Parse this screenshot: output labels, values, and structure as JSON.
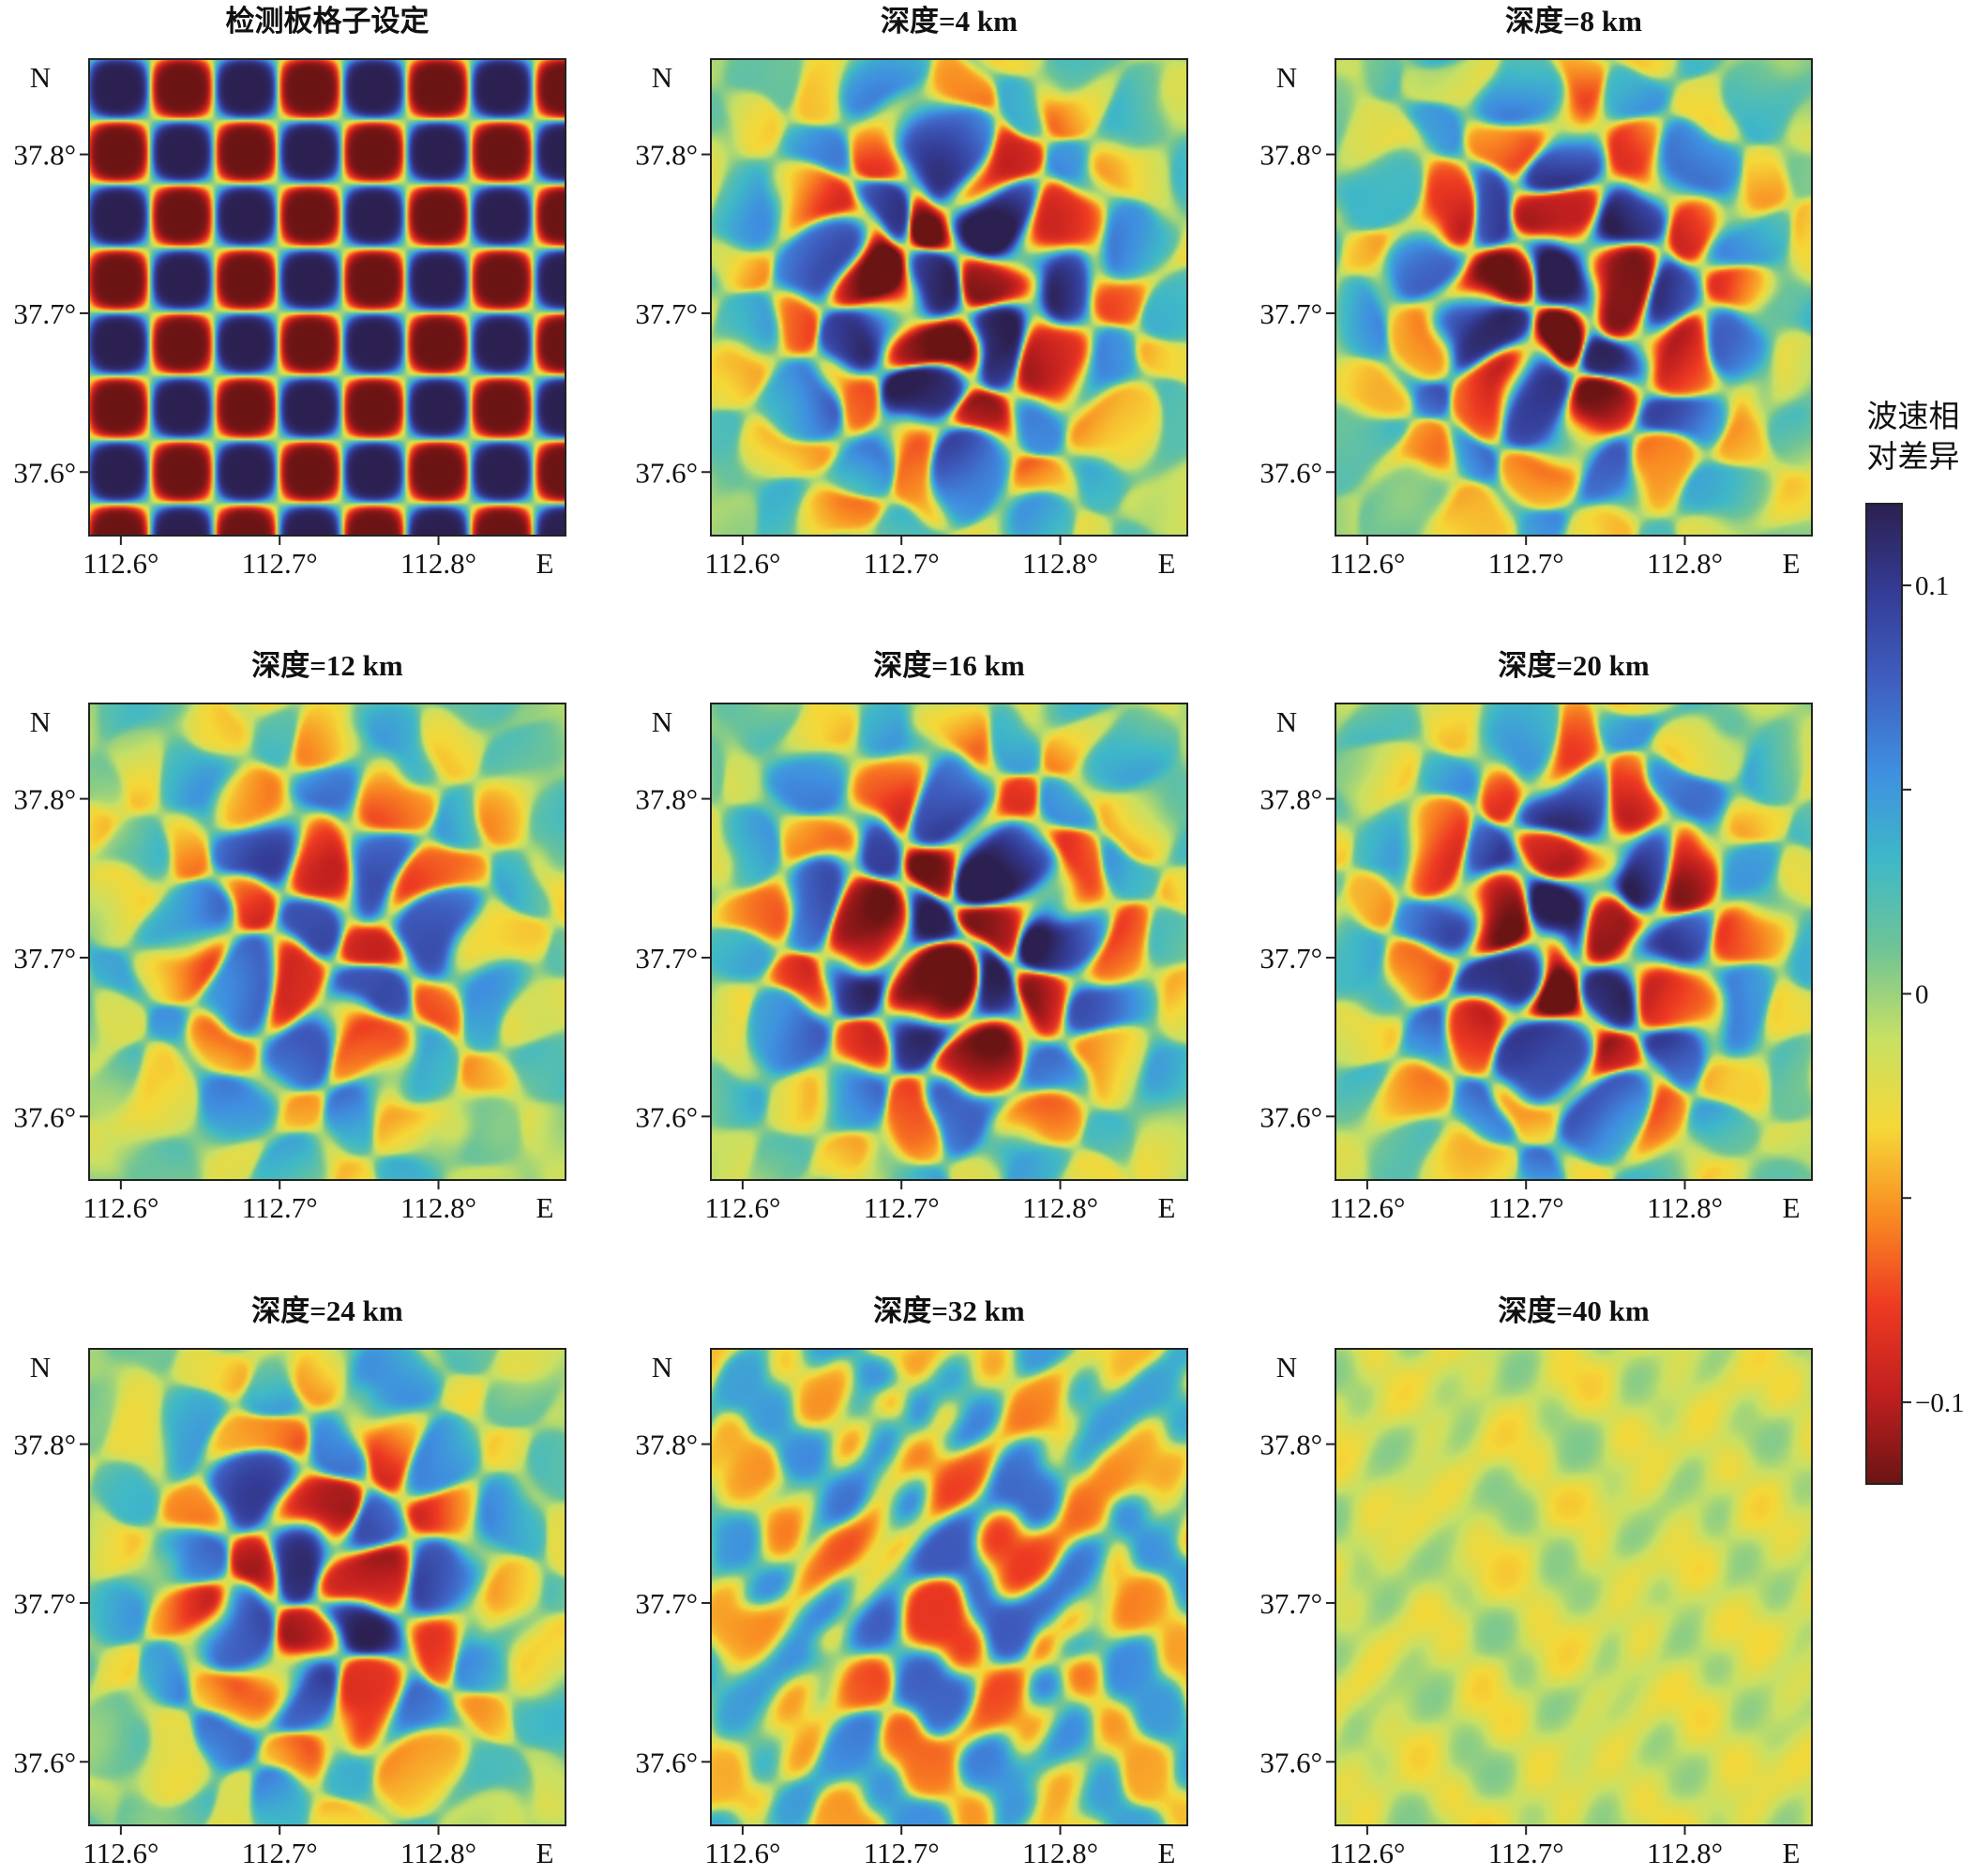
{
  "figure": {
    "type": "heatmap-grid",
    "panel_titles": [
      "检测板格子设定",
      "深度=4 km",
      "深度=8 km",
      "深度=12 km",
      "深度=16 km",
      "深度=20 km",
      "深度=24 km",
      "深度=32 km",
      "深度=40 km"
    ],
    "colorbar": {
      "title_line1": "波速相",
      "title_line2": "对差异",
      "ticks": [
        {
          "value": 0.1,
          "label": "0.1"
        },
        {
          "value": 0.05,
          "label": ""
        },
        {
          "value": 0,
          "label": "0"
        },
        {
          "value": -0.05,
          "label": ""
        },
        {
          "value": -0.1,
          "label": "−0.1"
        }
      ],
      "range": [
        -0.12,
        0.12
      ],
      "colors": [
        "#6b1414",
        "#c01f1f",
        "#ee3a22",
        "#f98a22",
        "#f5d838",
        "#c8e064",
        "#6fc496",
        "#3fb8c8",
        "#3f8fe0",
        "#3f5fc0",
        "#343c96",
        "#2c2050"
      ]
    }
  },
  "chart_data": [
    {
      "type": "heatmap",
      "title": "检测板格子设定",
      "x_ticks": [
        {
          "value": 112.6,
          "label": "112.6°"
        },
        {
          "value": 112.7,
          "label": "112.7°"
        },
        {
          "value": 112.8,
          "label": "112.8°"
        }
      ],
      "y_ticks": [
        {
          "value": 37.8,
          "label": "37.8°"
        },
        {
          "value": 37.7,
          "label": "37.7°"
        },
        {
          "value": 37.6,
          "label": "37.6°"
        }
      ],
      "x_end_label": "E",
      "y_end_label": "N",
      "xlim": [
        112.58,
        112.88
      ],
      "ylim": [
        37.56,
        37.86
      ],
      "value_range": [
        -0.12,
        0.12
      ],
      "pattern": "checkerboard",
      "amplitude": 0.12
    },
    {
      "type": "heatmap",
      "title": "深度=4 km",
      "x_ticks": [
        {
          "value": 112.6,
          "label": "112.6°"
        },
        {
          "value": 112.7,
          "label": "112.7°"
        },
        {
          "value": 112.8,
          "label": "112.8°"
        }
      ],
      "y_ticks": [
        {
          "value": 37.8,
          "label": "37.8°"
        },
        {
          "value": 37.7,
          "label": "37.7°"
        },
        {
          "value": 37.6,
          "label": "37.6°"
        }
      ],
      "x_end_label": "E",
      "y_end_label": "N",
      "xlim": [
        112.58,
        112.88
      ],
      "ylim": [
        37.56,
        37.86
      ],
      "value_range": [
        -0.12,
        0.12
      ],
      "pattern": "recovered",
      "amplitude": 0.12
    },
    {
      "type": "heatmap",
      "title": "深度=8 km",
      "x_ticks": [
        {
          "value": 112.6,
          "label": "112.6°"
        },
        {
          "value": 112.7,
          "label": "112.7°"
        },
        {
          "value": 112.8,
          "label": "112.8°"
        }
      ],
      "y_ticks": [
        {
          "value": 37.8,
          "label": "37.8°"
        },
        {
          "value": 37.7,
          "label": "37.7°"
        },
        {
          "value": 37.6,
          "label": "37.6°"
        }
      ],
      "x_end_label": "E",
      "y_end_label": "N",
      "xlim": [
        112.58,
        112.88
      ],
      "ylim": [
        37.56,
        37.86
      ],
      "value_range": [
        -0.12,
        0.12
      ],
      "pattern": "recovered",
      "amplitude": 0.12
    },
    {
      "type": "heatmap",
      "title": "深度=12 km",
      "x_ticks": [
        {
          "value": 112.6,
          "label": "112.6°"
        },
        {
          "value": 112.7,
          "label": "112.7°"
        },
        {
          "value": 112.8,
          "label": "112.8°"
        }
      ],
      "y_ticks": [
        {
          "value": 37.8,
          "label": "37.8°"
        },
        {
          "value": 37.7,
          "label": "37.7°"
        },
        {
          "value": 37.6,
          "label": "37.6°"
        }
      ],
      "x_end_label": "E",
      "y_end_label": "N",
      "xlim": [
        112.58,
        112.88
      ],
      "ylim": [
        37.56,
        37.86
      ],
      "value_range": [
        -0.12,
        0.12
      ],
      "pattern": "recovered",
      "amplitude": 0.09
    },
    {
      "type": "heatmap",
      "title": "深度=16 km",
      "x_ticks": [
        {
          "value": 112.6,
          "label": "112.6°"
        },
        {
          "value": 112.7,
          "label": "112.7°"
        },
        {
          "value": 112.8,
          "label": "112.8°"
        }
      ],
      "y_ticks": [
        {
          "value": 37.8,
          "label": "37.8°"
        },
        {
          "value": 37.7,
          "label": "37.7°"
        },
        {
          "value": 37.6,
          "label": "37.6°"
        }
      ],
      "x_end_label": "E",
      "y_end_label": "N",
      "xlim": [
        112.58,
        112.88
      ],
      "ylim": [
        37.56,
        37.86
      ],
      "value_range": [
        -0.12,
        0.12
      ],
      "pattern": "recovered",
      "amplitude": 0.12
    },
    {
      "type": "heatmap",
      "title": "深度=20 km",
      "x_ticks": [
        {
          "value": 112.6,
          "label": "112.6°"
        },
        {
          "value": 112.7,
          "label": "112.7°"
        },
        {
          "value": 112.8,
          "label": "112.8°"
        }
      ],
      "y_ticks": [
        {
          "value": 37.8,
          "label": "37.8°"
        },
        {
          "value": 37.7,
          "label": "37.7°"
        },
        {
          "value": 37.6,
          "label": "37.6°"
        }
      ],
      "x_end_label": "E",
      "y_end_label": "N",
      "xlim": [
        112.58,
        112.88
      ],
      "ylim": [
        37.56,
        37.86
      ],
      "value_range": [
        -0.12,
        0.12
      ],
      "pattern": "recovered",
      "amplitude": 0.12
    },
    {
      "type": "heatmap",
      "title": "深度=24 km",
      "x_ticks": [
        {
          "value": 112.6,
          "label": "112.6°"
        },
        {
          "value": 112.7,
          "label": "112.7°"
        },
        {
          "value": 112.8,
          "label": "112.8°"
        }
      ],
      "y_ticks": [
        {
          "value": 37.8,
          "label": "37.8°"
        },
        {
          "value": 37.7,
          "label": "37.7°"
        },
        {
          "value": 37.6,
          "label": "37.6°"
        }
      ],
      "x_end_label": "E",
      "y_end_label": "N",
      "xlim": [
        112.58,
        112.88
      ],
      "ylim": [
        37.56,
        37.86
      ],
      "value_range": [
        -0.12,
        0.12
      ],
      "pattern": "recovered",
      "amplitude": 0.1
    },
    {
      "type": "heatmap",
      "title": "深度=32 km",
      "x_ticks": [
        {
          "value": 112.6,
          "label": "112.6°"
        },
        {
          "value": 112.7,
          "label": "112.7°"
        },
        {
          "value": 112.8,
          "label": "112.8°"
        }
      ],
      "y_ticks": [
        {
          "value": 37.8,
          "label": "37.8°"
        },
        {
          "value": 37.7,
          "label": "37.7°"
        },
        {
          "value": 37.6,
          "label": "37.6°"
        }
      ],
      "x_end_label": "E",
      "y_end_label": "N",
      "xlim": [
        112.58,
        112.88
      ],
      "ylim": [
        37.56,
        37.86
      ],
      "value_range": [
        -0.12,
        0.12
      ],
      "pattern": "blobby",
      "amplitude": 0.08
    },
    {
      "type": "heatmap",
      "title": "深度=40 km",
      "x_ticks": [
        {
          "value": 112.6,
          "label": "112.6°"
        },
        {
          "value": 112.7,
          "label": "112.7°"
        },
        {
          "value": 112.8,
          "label": "112.8°"
        }
      ],
      "y_ticks": [
        {
          "value": 37.8,
          "label": "37.8°"
        },
        {
          "value": 37.7,
          "label": "37.7°"
        },
        {
          "value": 37.6,
          "label": "37.6°"
        }
      ],
      "x_end_label": "E",
      "y_end_label": "N",
      "xlim": [
        112.58,
        112.88
      ],
      "ylim": [
        37.56,
        37.86
      ],
      "value_range": [
        -0.12,
        0.12
      ],
      "pattern": "faint",
      "amplitude": 0.04
    }
  ]
}
